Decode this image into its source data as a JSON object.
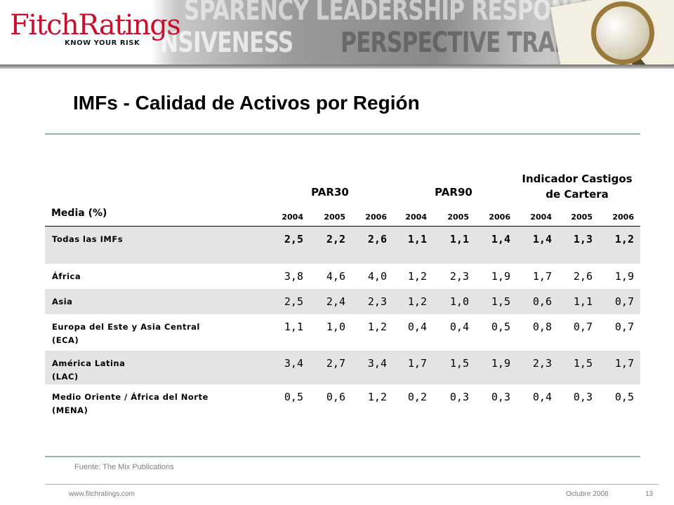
{
  "header": {
    "logo_text": "FitchRatings",
    "logo_tagline": "KNOW YOUR RISK",
    "banner_words": [
      "SPARENCY LEADERSHIP RESPONSIVENESS",
      "NSIVENESS",
      "PERSPECTIVE TRANSPARENCY L"
    ]
  },
  "title": "IMFs - Calidad de Activos por Región",
  "table": {
    "row_header": "Media (%)",
    "groups": [
      "PAR30",
      "PAR90",
      "Indicador Castigos",
      "de Cartera"
    ],
    "years": [
      "2004",
      "2005",
      "2006",
      "2004",
      "2005",
      "2006",
      "2004",
      "2005",
      "2006"
    ],
    "rows": [
      {
        "label": [
          "Todas las IMFs"
        ],
        "values": [
          "2,5",
          "2,2",
          "2,6",
          "1,1",
          "1,1",
          "1,4",
          "1,4",
          "1,3",
          "1,2"
        ]
      },
      {
        "label": [
          "África"
        ],
        "values": [
          "3,8",
          "4,6",
          "4,0",
          "1,2",
          "2,3",
          "1,9",
          "1,7",
          "2,6",
          "1,9"
        ]
      },
      {
        "label": [
          "Asia"
        ],
        "values": [
          "2,5",
          "2,4",
          "2,3",
          "1,2",
          "1,0",
          "1,5",
          "0,6",
          "1,1",
          "0,7"
        ]
      },
      {
        "label": [
          "Europa del Este y Asia Central",
          "(ECA)"
        ],
        "values": [
          "1,1",
          "1,0",
          "1,2",
          "0,4",
          "0,4",
          "0,5",
          "0,8",
          "0,7",
          "0,7"
        ]
      },
      {
        "label": [
          "América Latina",
          "(LAC)"
        ],
        "values": [
          "3,4",
          "2,7",
          "3,4",
          "1,7",
          "1,5",
          "1,9",
          "2,3",
          "1,5",
          "1,7"
        ]
      },
      {
        "label": [
          "Medio Oriente / África del Norte",
          "(MENA)"
        ],
        "values": [
          "0,5",
          "0,6",
          "1,2",
          "0,2",
          "0,3",
          "0,3",
          "0,4",
          "0,3",
          "0,5"
        ]
      }
    ]
  },
  "source": "Fuente: The Mix Publications",
  "footer": {
    "url": "www.fitchratings.com",
    "date": "Octubre 2008",
    "page": "13"
  },
  "colors": {
    "logo_red": "#c8102e",
    "rule_teal": "#8db6ae",
    "row_shade": "#e4e4e4"
  }
}
